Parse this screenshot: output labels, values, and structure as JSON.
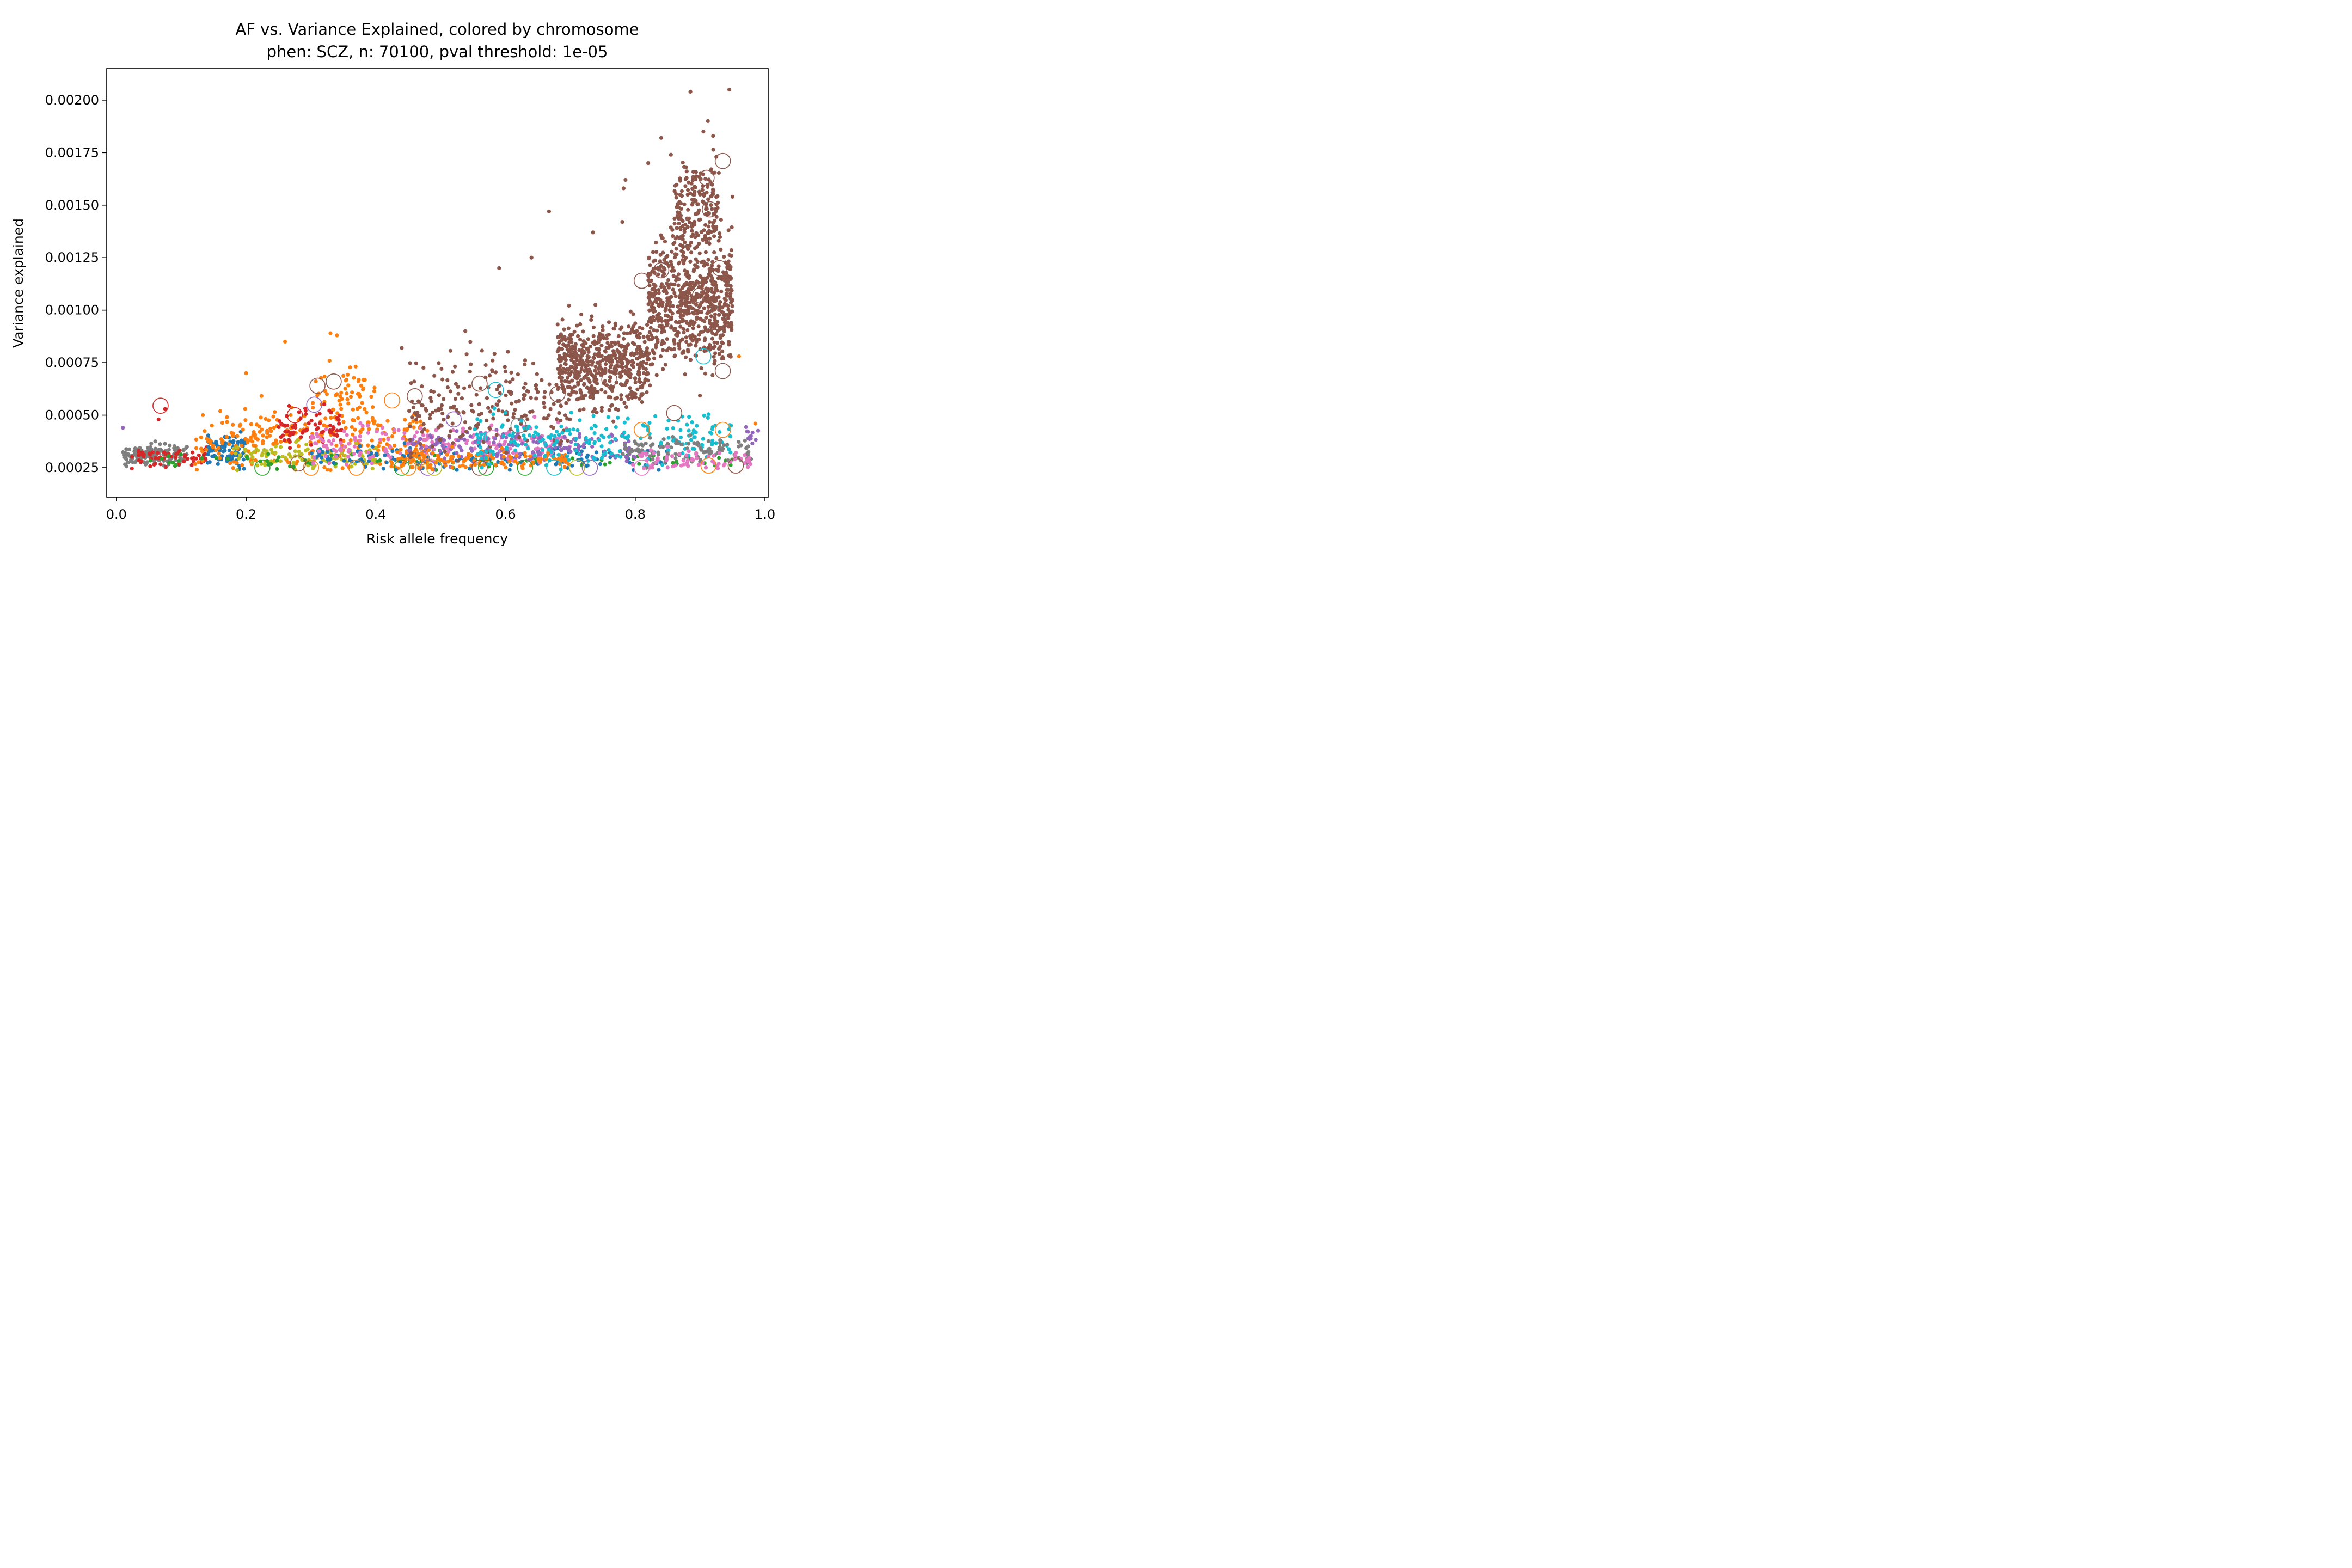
{
  "chart_data": {
    "type": "scatter",
    "title": "AF vs. Variance Explained, colored by chromosome",
    "subtitle": "phen: SCZ, n: 70100, pval threshold: 1e-05",
    "xlabel": "Risk allele frequency",
    "ylabel": "Variance explained",
    "xlim": [
      -0.015,
      1.005
    ],
    "ylim": [
      0.00011,
      0.00215
    ],
    "x_ticks": [
      0.0,
      0.2,
      0.4,
      0.6,
      0.8,
      1.0
    ],
    "x_tick_labels": [
      "0.0",
      "0.2",
      "0.4",
      "0.6",
      "0.8",
      "1.0"
    ],
    "y_ticks": [
      0.00025,
      0.0005,
      0.00075,
      0.001,
      0.00125,
      0.0015,
      0.00175,
      0.002
    ],
    "y_tick_labels": [
      "0.00025",
      "0.00050",
      "0.00075",
      "0.00100",
      "0.00125",
      "0.00150",
      "0.00175",
      "0.00200"
    ],
    "grid": false,
    "legend": "none",
    "palette": [
      "#1f77b4",
      "#ff7f0e",
      "#2ca02c",
      "#d62728",
      "#9467bd",
      "#8c564b",
      "#e377c2",
      "#7f7f7f",
      "#bcbd22",
      "#17becf"
    ],
    "clusters": [
      {
        "color": "#7f7f7f",
        "x_range": [
          0.01,
          0.11
        ],
        "y_center": 0.00031,
        "y_spread": 4e-05,
        "n": 140
      },
      {
        "color": "#d62728",
        "x_range": [
          0.02,
          0.14
        ],
        "y_center": 0.0003,
        "y_spread": 4e-05,
        "n": 60
      },
      {
        "color": "#1f77b4",
        "x_range": [
          0.14,
          0.2
        ],
        "y_center": 0.00033,
        "y_spread": 6e-05,
        "n": 90
      },
      {
        "color": "#ff7f0e",
        "x_range": [
          0.12,
          0.48
        ],
        "y_center": 0.00038,
        "y_spread": 0.00012,
        "n": 260
      },
      {
        "color": "#ff7f0e",
        "x_range": [
          0.3,
          0.4
        ],
        "y_center": 0.0006,
        "y_spread": 0.00012,
        "n": 70
      },
      {
        "color": "#d62728",
        "x_range": [
          0.25,
          0.35
        ],
        "y_center": 0.00045,
        "y_spread": 8e-05,
        "n": 70
      },
      {
        "color": "#bcbd22",
        "x_range": [
          0.18,
          0.4
        ],
        "y_center": 0.0003,
        "y_spread": 5e-05,
        "n": 110
      },
      {
        "color": "#2ca02c",
        "x_range": [
          0.05,
          0.95
        ],
        "y_center": 0.00028,
        "y_spread": 3e-05,
        "n": 80
      },
      {
        "color": "#1f77b4",
        "x_range": [
          0.3,
          0.85
        ],
        "y_center": 0.0003,
        "y_spread": 5e-05,
        "n": 160
      },
      {
        "color": "#e377c2",
        "x_range": [
          0.3,
          0.7
        ],
        "y_center": 0.00036,
        "y_spread": 8e-05,
        "n": 200
      },
      {
        "color": "#9467bd",
        "x_range": [
          0.45,
          0.8
        ],
        "y_center": 0.00035,
        "y_spread": 6e-05,
        "n": 170
      },
      {
        "color": "#ff7f0e",
        "x_range": [
          0.42,
          0.7
        ],
        "y_center": 0.00029,
        "y_spread": 4e-05,
        "n": 130
      },
      {
        "color": "#8c564b",
        "x_range": [
          0.45,
          0.7
        ],
        "y_center": 0.00055,
        "y_spread": 0.00018,
        "n": 220
      },
      {
        "color": "#17becf",
        "x_range": [
          0.55,
          0.95
        ],
        "y_center": 0.00038,
        "y_spread": 0.0001,
        "n": 210
      },
      {
        "color": "#8c564b",
        "x_range": [
          0.68,
          0.82
        ],
        "y_center": 0.00075,
        "y_spread": 0.00017,
        "n": 560
      },
      {
        "color": "#8c564b",
        "x_range": [
          0.82,
          0.95
        ],
        "y_center": 0.00105,
        "y_spread": 0.00025,
        "n": 700
      },
      {
        "color": "#8c564b",
        "x_range": [
          0.86,
          0.93
        ],
        "y_center": 0.0015,
        "y_spread": 0.00016,
        "n": 170
      },
      {
        "color": "#7f7f7f",
        "x_range": [
          0.78,
          0.98
        ],
        "y_center": 0.00033,
        "y_spread": 5e-05,
        "n": 110
      },
      {
        "color": "#e377c2",
        "x_range": [
          0.78,
          0.98
        ],
        "y_center": 0.00029,
        "y_spread": 4e-05,
        "n": 70
      },
      {
        "color": "#9467bd",
        "x_range": [
          0.97,
          0.99
        ],
        "y_center": 0.0004,
        "y_spread": 5e-05,
        "n": 12
      }
    ],
    "outliers": [
      {
        "x": 0.885,
        "y": 0.00204,
        "color": "#8c564b"
      },
      {
        "x": 0.945,
        "y": 0.00205,
        "color": "#8c564b"
      },
      {
        "x": 0.912,
        "y": 0.0019,
        "color": "#8c564b"
      },
      {
        "x": 0.905,
        "y": 0.00185,
        "color": "#8c564b"
      },
      {
        "x": 0.92,
        "y": 0.00183,
        "color": "#8c564b"
      },
      {
        "x": 0.925,
        "y": 0.00173,
        "color": "#8c564b"
      },
      {
        "x": 0.84,
        "y": 0.00182,
        "color": "#8c564b"
      },
      {
        "x": 0.855,
        "y": 0.00174,
        "color": "#8c564b"
      },
      {
        "x": 0.82,
        "y": 0.0017,
        "color": "#8c564b"
      },
      {
        "x": 0.785,
        "y": 0.00162,
        "color": "#8c564b"
      },
      {
        "x": 0.782,
        "y": 0.00158,
        "color": "#8c564b"
      },
      {
        "x": 0.95,
        "y": 0.00154,
        "color": "#8c564b"
      },
      {
        "x": 0.667,
        "y": 0.00147,
        "color": "#8c564b"
      },
      {
        "x": 0.78,
        "y": 0.00142,
        "color": "#8c564b"
      },
      {
        "x": 0.735,
        "y": 0.00137,
        "color": "#8c564b"
      },
      {
        "x": 0.59,
        "y": 0.0012,
        "color": "#8c564b"
      },
      {
        "x": 0.64,
        "y": 0.00125,
        "color": "#8c564b"
      },
      {
        "x": 0.26,
        "y": 0.00085,
        "color": "#ff7f0e"
      },
      {
        "x": 0.33,
        "y": 0.00089,
        "color": "#ff7f0e"
      },
      {
        "x": 0.34,
        "y": 0.00088,
        "color": "#ff7f0e"
      },
      {
        "x": 0.2,
        "y": 0.0007,
        "color": "#ff7f0e"
      },
      {
        "x": 0.538,
        "y": 0.0009,
        "color": "#8c564b"
      },
      {
        "x": 0.96,
        "y": 0.00078,
        "color": "#ff7f0e"
      },
      {
        "x": 0.44,
        "y": 0.00082,
        "color": "#8c564b"
      },
      {
        "x": 0.54,
        "y": 0.00079,
        "color": "#8c564b"
      },
      {
        "x": 0.58,
        "y": 0.00076,
        "color": "#8c564b"
      },
      {
        "x": 0.065,
        "y": 0.00048,
        "color": "#d62728"
      },
      {
        "x": 0.075,
        "y": 0.00053,
        "color": "#d62728"
      },
      {
        "x": 0.01,
        "y": 0.00044,
        "color": "#9467bd"
      },
      {
        "x": 0.985,
        "y": 0.00046,
        "color": "#ff7f0e"
      }
    ],
    "open_circles": [
      {
        "x": 0.068,
        "y": 0.000545,
        "color": "#d62728"
      },
      {
        "x": 0.275,
        "y": 0.0005,
        "color": "#d62728"
      },
      {
        "x": 0.305,
        "y": 0.00055,
        "color": "#9467bd"
      },
      {
        "x": 0.31,
        "y": 0.00064,
        "color": "#8c564b"
      },
      {
        "x": 0.335,
        "y": 0.00066,
        "color": "#8c564b"
      },
      {
        "x": 0.425,
        "y": 0.00057,
        "color": "#ff7f0e"
      },
      {
        "x": 0.46,
        "y": 0.00059,
        "color": "#8c564b"
      },
      {
        "x": 0.47,
        "y": 0.0003,
        "color": "#ff7f0e"
      },
      {
        "x": 0.52,
        "y": 0.00048,
        "color": "#9467bd"
      },
      {
        "x": 0.56,
        "y": 0.00065,
        "color": "#8c564b"
      },
      {
        "x": 0.585,
        "y": 0.00062,
        "color": "#17becf"
      },
      {
        "x": 0.58,
        "y": 0.00039,
        "color": "#e377c2"
      },
      {
        "x": 0.62,
        "y": 0.00045,
        "color": "#7f7f7f"
      },
      {
        "x": 0.68,
        "y": 0.0006,
        "color": "#8c564b"
      },
      {
        "x": 0.76,
        "y": 0.00067,
        "color": "#8c564b"
      },
      {
        "x": 0.81,
        "y": 0.00043,
        "color": "#ff7f0e"
      },
      {
        "x": 0.81,
        "y": 0.00114,
        "color": "#8c564b"
      },
      {
        "x": 0.84,
        "y": 0.00119,
        "color": "#8c564b"
      },
      {
        "x": 0.86,
        "y": 0.00051,
        "color": "#8c564b"
      },
      {
        "x": 0.9,
        "y": 0.00107,
        "color": "#8c564b"
      },
      {
        "x": 0.905,
        "y": 0.00078,
        "color": "#17becf"
      },
      {
        "x": 0.915,
        "y": 0.00148,
        "color": "#8c564b"
      },
      {
        "x": 0.91,
        "y": 0.00163,
        "color": "#8c564b"
      },
      {
        "x": 0.935,
        "y": 0.00171,
        "color": "#8c564b"
      },
      {
        "x": 0.93,
        "y": 0.0012,
        "color": "#8c564b"
      },
      {
        "x": 0.935,
        "y": 0.00071,
        "color": "#8c564b"
      },
      {
        "x": 0.935,
        "y": 0.00043,
        "color": "#ff7f0e"
      },
      {
        "x": 0.81,
        "y": 0.00025,
        "color": "#e377c2"
      },
      {
        "x": 0.225,
        "y": 0.00025,
        "color": "#2ca02c"
      },
      {
        "x": 0.3,
        "y": 0.00025,
        "color": "#ff7f0e"
      },
      {
        "x": 0.28,
        "y": 0.00027,
        "color": "#8c564b"
      },
      {
        "x": 0.37,
        "y": 0.00025,
        "color": "#ff7f0e"
      },
      {
        "x": 0.44,
        "y": 0.00025,
        "color": "#2ca02c"
      },
      {
        "x": 0.45,
        "y": 0.00025,
        "color": "#ff7f0e"
      },
      {
        "x": 0.48,
        "y": 0.00025,
        "color": "#9467bd"
      },
      {
        "x": 0.49,
        "y": 0.00025,
        "color": "#bcbd22"
      },
      {
        "x": 0.56,
        "y": 0.00025,
        "color": "#8c564b"
      },
      {
        "x": 0.57,
        "y": 0.00025,
        "color": "#2ca02c"
      },
      {
        "x": 0.63,
        "y": 0.00025,
        "color": "#2ca02c"
      },
      {
        "x": 0.675,
        "y": 0.00025,
        "color": "#17becf"
      },
      {
        "x": 0.71,
        "y": 0.00025,
        "color": "#bcbd22"
      },
      {
        "x": 0.73,
        "y": 0.00025,
        "color": "#9467bd"
      },
      {
        "x": 0.913,
        "y": 0.00026,
        "color": "#ff7f0e"
      },
      {
        "x": 0.955,
        "y": 0.00026,
        "color": "#8c564b"
      }
    ]
  }
}
